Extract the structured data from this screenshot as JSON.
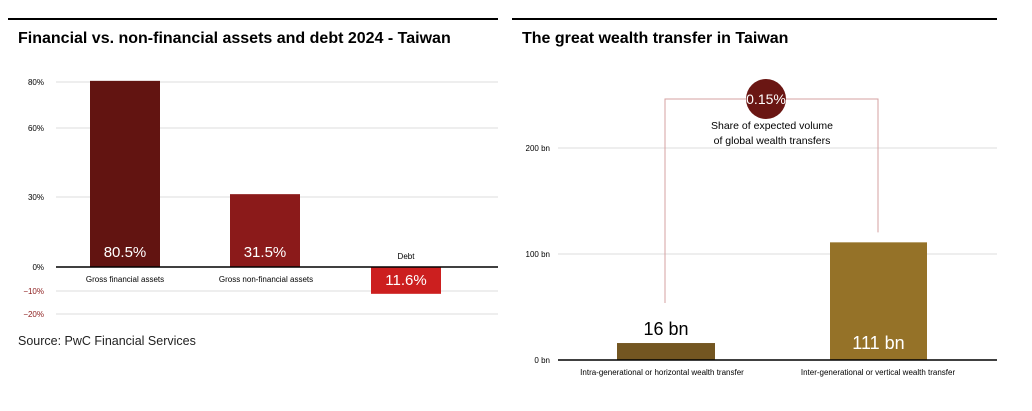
{
  "colors": {
    "dark_red": "#621411",
    "mid_red": "#8b1a1a",
    "bright_red": "#cc1f1f",
    "gold": "#957228",
    "dark_gold": "#735621",
    "circle": "#6a1613",
    "bracket": "#d5a0a0",
    "grid": "#dddddd"
  },
  "left": {
    "title": "Financial vs. non-financial assets and debt 2024 - Taiwan",
    "source": "Source: PwC Financial Services"
  },
  "right": {
    "title": "The great wealth transfer in Taiwan"
  },
  "chart_data": [
    {
      "type": "bar",
      "title": "Financial vs. non-financial assets and debt 2024 - Taiwan",
      "categories": [
        "Gross financial assets",
        "Gross non-financial assets",
        "Debt"
      ],
      "values": [
        80.5,
        31.5,
        -11.6
      ],
      "data_labels": [
        "80.5%",
        "31.5%",
        "11.6%"
      ],
      "y_ticks": [
        "80%",
        "60%",
        "30%",
        "0%",
        "−10%",
        "−20%"
      ],
      "ylim": [
        -20,
        80
      ],
      "grid": true
    },
    {
      "type": "bar",
      "title": "The great wealth transfer in Taiwan",
      "categories": [
        "Intra-generational  or  horizontal wealth  transfer",
        "Inter-generational or  vertical wealth transfer"
      ],
      "values": [
        16,
        111
      ],
      "data_labels": [
        "16 bn",
        "111 bn"
      ],
      "y_ticks": [
        "200 bn",
        "100 bn",
        "0 bn"
      ],
      "ylim": [
        0,
        200
      ],
      "grid": true,
      "annotation": {
        "value": "0.15%",
        "text_line1": "Share of expected volume",
        "text_line2": "of global wealth transfers"
      }
    }
  ]
}
